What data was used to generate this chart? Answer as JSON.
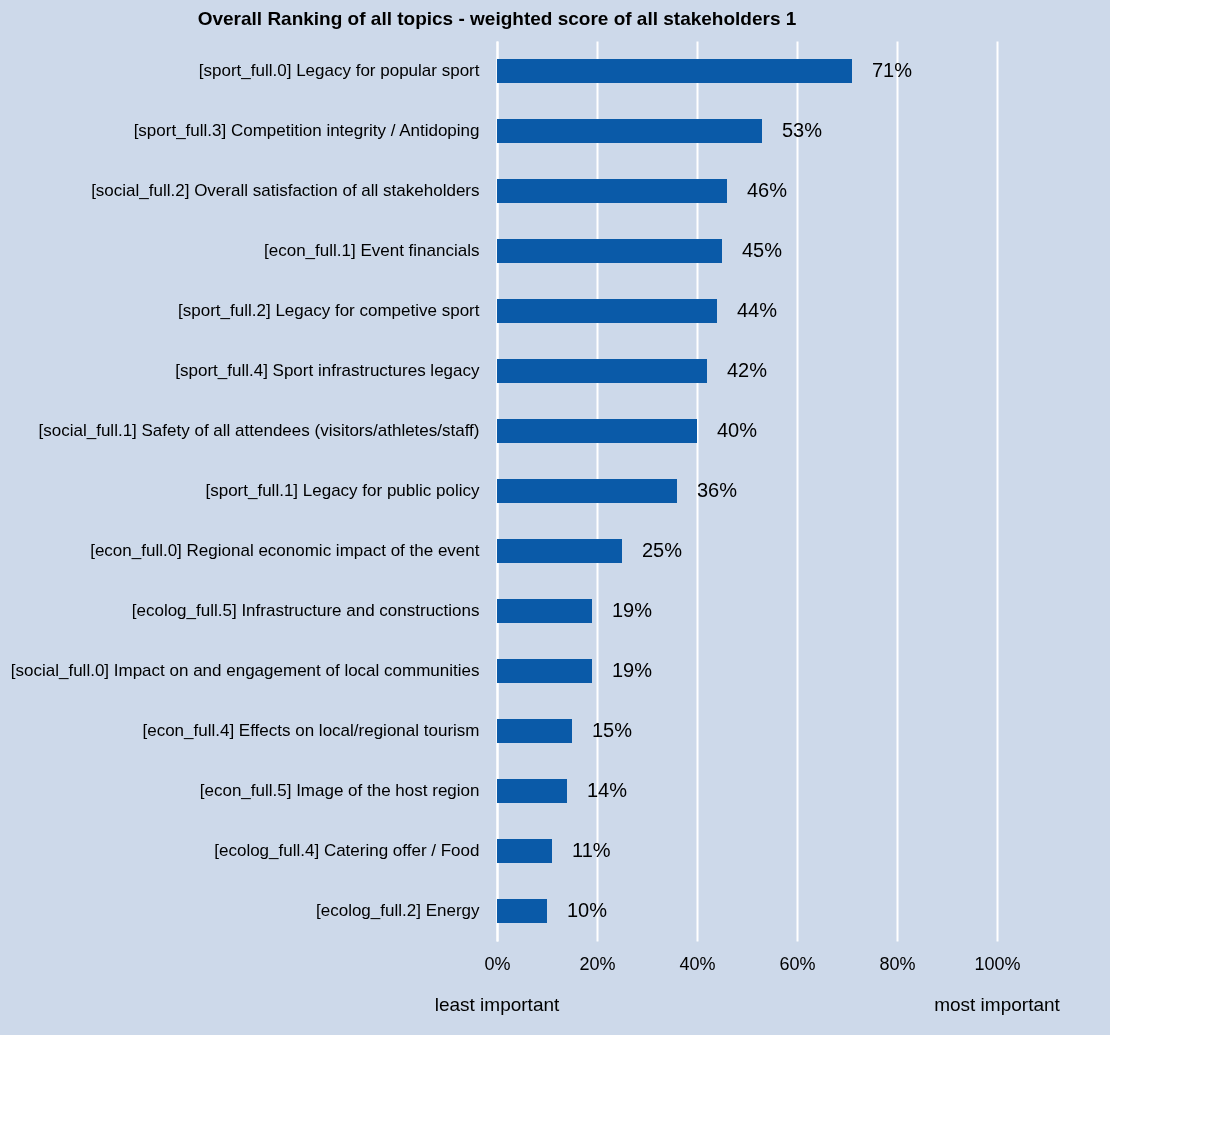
{
  "chart_data": {
    "type": "bar",
    "orientation": "horizontal",
    "title": "Overall Ranking of all topics - weighted score of all stakeholders 1",
    "categories": [
      "[sport_full.0] Legacy for popular sport",
      "[sport_full.3] Competition integrity / Antidoping",
      "[social_full.2] Overall satisfaction of all stakeholders",
      "[econ_full.1] Event financials",
      "[sport_full.2] Legacy for competive sport",
      "[sport_full.4] Sport infrastructures legacy",
      "[social_full.1] Safety of all attendees (visitors/athletes/staff)",
      "[sport_full.1] Legacy for public policy",
      "[econ_full.0] Regional economic impact of the event",
      "[ecolog_full.5] Infrastructure and constructions",
      "[social_full.0] Impact on and engagement of local communities",
      "[econ_full.4] Effects on local/regional tourism",
      "[econ_full.5] Image of the host region",
      "[ecolog_full.4] Catering offer / Food",
      "[ecolog_full.2] Energy"
    ],
    "values": [
      71,
      53,
      46,
      45,
      44,
      42,
      40,
      36,
      25,
      19,
      19,
      15,
      14,
      11,
      10
    ],
    "value_labels": [
      "71%",
      "53%",
      "46%",
      "45%",
      "44%",
      "42%",
      "40%",
      "36%",
      "25%",
      "19%",
      "19%",
      "15%",
      "14%",
      "11%",
      "10%"
    ],
    "color": "#0a5aa8",
    "xlim": [
      0,
      100
    ],
    "xticks": [
      {
        "value": 0,
        "label": "0%"
      },
      {
        "value": 20,
        "label": "20%"
      },
      {
        "value": 40,
        "label": "40%"
      },
      {
        "value": 60,
        "label": "60%"
      },
      {
        "value": 80,
        "label": "80%"
      },
      {
        "value": 100,
        "label": "100%"
      }
    ],
    "grid": "x",
    "annotations": [
      "least important",
      "most important"
    ]
  }
}
